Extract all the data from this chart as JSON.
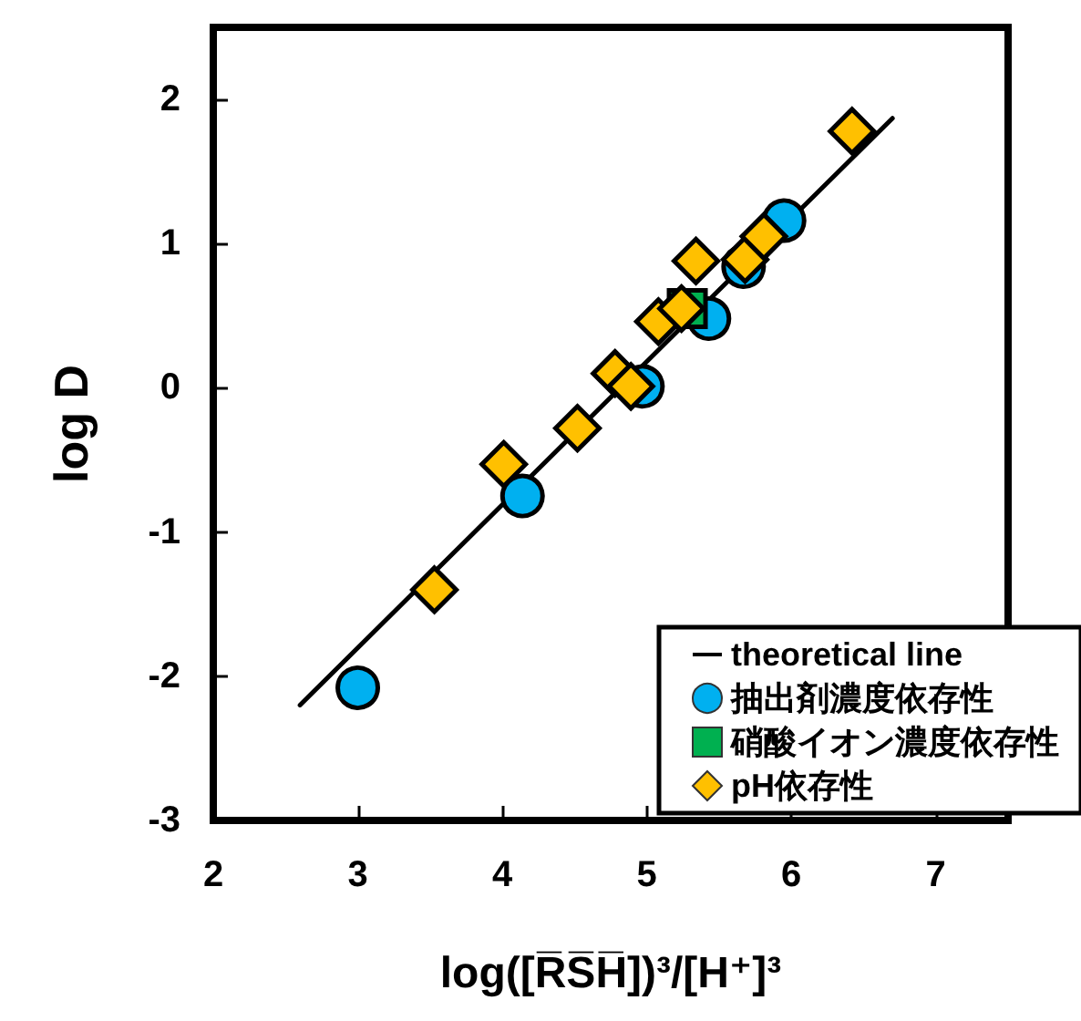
{
  "chart_data": {
    "type": "scatter",
    "xlabel": "log([R̅S̅H̅])³/[H⁺]³",
    "ylabel": "log D",
    "xlim": [
      2,
      7.5
    ],
    "xticks": [
      2,
      3,
      4,
      5,
      6,
      7
    ],
    "ylim": [
      -3,
      2.5
    ],
    "yticks": [
      -3,
      -2,
      -1,
      0,
      1,
      2
    ],
    "grid": false,
    "legend": "bottom right",
    "series": [
      {
        "name": "theoretical line",
        "type": "line",
        "color": "#000000",
        "marker": "none",
        "line_style": "solid",
        "x": [
          2.6,
          6.7
        ],
        "values": [
          -2.2,
          1.87
        ]
      },
      {
        "name": "抽出剤濃度依存性",
        "color": "#00b0f0",
        "marker": "circle",
        "x": [
          3.0,
          4.14,
          4.97,
          5.43,
          5.67,
          5.95
        ],
        "values": [
          -2.08,
          -0.75,
          0.01,
          0.48,
          0.84,
          1.16
        ]
      },
      {
        "name": "硝酸イオン濃度依存性",
        "color": "#00b050",
        "marker": "square",
        "x": [
          5.28
        ],
        "values": [
          0.55
        ]
      },
      {
        "name": "pH依存性",
        "color": "#ffc000",
        "marker": "diamond",
        "x": [
          3.53,
          4.01,
          4.52,
          4.78,
          4.89,
          5.08,
          5.24,
          5.34,
          5.68,
          5.81,
          6.42
        ],
        "values": [
          -1.4,
          -0.53,
          -0.28,
          0.1,
          0.01,
          0.46,
          0.55,
          0.88,
          0.89,
          1.05,
          1.78
        ]
      }
    ]
  }
}
